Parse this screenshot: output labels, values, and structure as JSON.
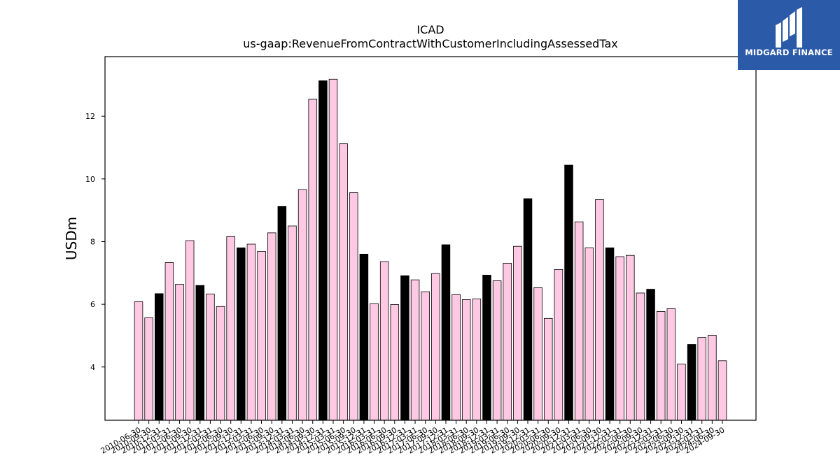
{
  "chart_data": {
    "type": "bar",
    "title": "ICAD",
    "subtitle": "us-gaap:RevenueFromContractWithCustomerIncludingAssessedTax",
    "ylabel": "USDm",
    "xlabel": "",
    "ylim": [
      2.3,
      13.9
    ],
    "yticks": [
      4,
      6,
      8,
      10,
      12
    ],
    "grid": false,
    "colors": {
      "default": "#ffc8e3",
      "highlight": "#000000",
      "edge": "#000000"
    },
    "categories": [
      "2010-06-30",
      "2010-09-30",
      "2010-12-31",
      "2011-03-31",
      "2011-06-30",
      "2011-09-30",
      "2011-12-31",
      "2012-03-31",
      "2012-06-30",
      "2012-09-30",
      "2012-12-31",
      "2013-03-31",
      "2013-06-30",
      "2013-09-30",
      "2013-12-31",
      "2014-03-31",
      "2014-06-30",
      "2014-09-30",
      "2014-12-31",
      "2015-03-31",
      "2015-06-30",
      "2015-09-30",
      "2015-12-31",
      "2016-03-31",
      "2016-06-30",
      "2016-09-30",
      "2016-12-31",
      "2017-03-31",
      "2017-06-30",
      "2017-09-30",
      "2017-12-31",
      "2018-03-31",
      "2018-06-30",
      "2018-09-30",
      "2018-12-31",
      "2019-03-31",
      "2019-06-30",
      "2019-09-30",
      "2019-12-31",
      "2020-03-31",
      "2020-06-30",
      "2020-09-30",
      "2020-12-31",
      "2021-03-31",
      "2021-06-30",
      "2021-09-30",
      "2021-12-31",
      "2022-03-31",
      "2022-06-30",
      "2022-09-30",
      "2022-12-31",
      "2023-03-31",
      "2023-06-30",
      "2023-09-30",
      "2023-12-31",
      "2024-03-31",
      "2024-06-30",
      "2024-09-30"
    ],
    "values": [
      6.08,
      5.57,
      6.34,
      7.33,
      6.64,
      8.03,
      6.6,
      6.33,
      5.93,
      8.16,
      7.8,
      7.92,
      7.69,
      8.28,
      9.12,
      8.5,
      9.66,
      12.54,
      13.13,
      13.18,
      11.12,
      9.56,
      7.6,
      6.02,
      7.36,
      5.99,
      6.91,
      6.78,
      6.4,
      6.98,
      7.9,
      6.31,
      6.15,
      6.17,
      6.93,
      6.75,
      7.31,
      7.85,
      9.37,
      6.53,
      5.55,
      7.11,
      10.44,
      8.63,
      7.8,
      9.34,
      7.8,
      7.52,
      7.56,
      6.36,
      6.48,
      5.77,
      5.86,
      4.09,
      4.72,
      4.94,
      5.01,
      4.2
    ],
    "highlight": [
      false,
      false,
      true,
      false,
      false,
      false,
      true,
      false,
      false,
      false,
      true,
      false,
      false,
      false,
      true,
      false,
      false,
      false,
      true,
      false,
      false,
      false,
      true,
      false,
      false,
      false,
      true,
      false,
      false,
      false,
      true,
      false,
      false,
      false,
      true,
      false,
      false,
      false,
      true,
      false,
      false,
      false,
      true,
      false,
      false,
      false,
      true,
      false,
      false,
      false,
      true,
      false,
      false,
      false,
      true,
      false,
      false,
      false
    ]
  },
  "logo": {
    "text": "MIDGARD FINANCE",
    "icon": "midgard-logo-icon"
  }
}
